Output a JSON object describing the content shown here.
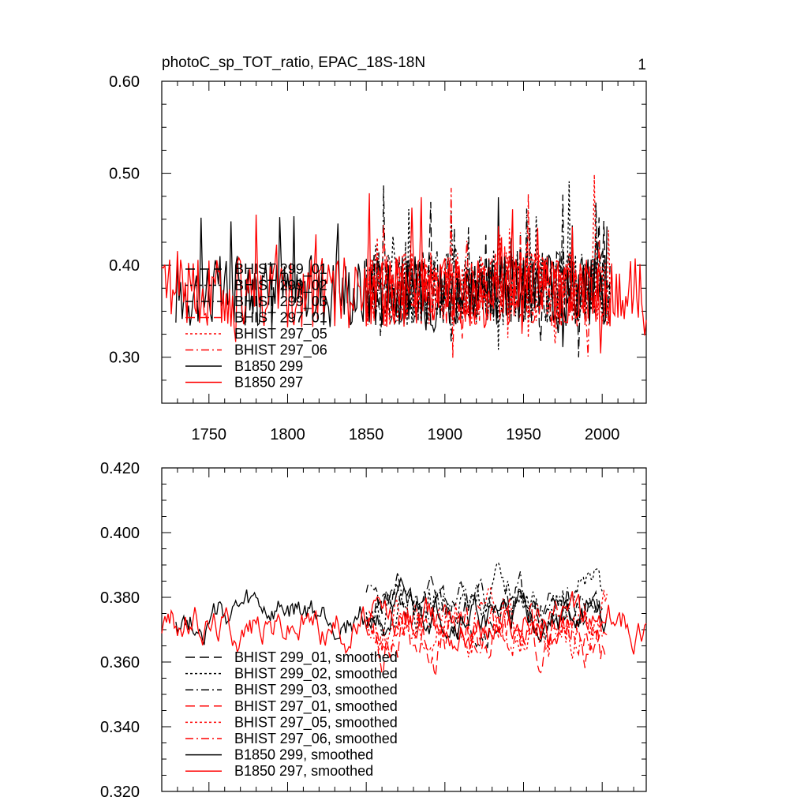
{
  "chart_data": [
    {
      "type": "line",
      "title": "photoC_sp_TOT_ratio, EPAC_18S-18N",
      "page_number": "1",
      "xlim": [
        1720,
        2028
      ],
      "ylim": [
        0.25,
        0.6
      ],
      "x_ticks": [
        1750,
        1800,
        1850,
        1900,
        1950,
        2000
      ],
      "x_tick_labels": [
        "1750",
        "1800",
        "1850",
        "1900",
        "1950",
        "2000"
      ],
      "y_ticks": [
        0.3,
        0.4,
        0.5,
        0.6
      ],
      "y_tick_labels": [
        "0.30",
        "0.40",
        "0.50",
        "0.60"
      ],
      "legend_position": "lower-left",
      "series": [
        {
          "name": "BHIST 299_01",
          "color": "#000000",
          "dash": "long-dash",
          "x_range": [
            1850,
            2005
          ],
          "mean": 0.375,
          "amp": 0.05,
          "seed": 11
        },
        {
          "name": "BHIST 299_02",
          "color": "#000000",
          "dash": "short-dash",
          "x_range": [
            1850,
            2005
          ],
          "mean": 0.378,
          "amp": 0.055,
          "seed": 12
        },
        {
          "name": "BHIST 299_03",
          "color": "#000000",
          "dash": "dash-dot",
          "x_range": [
            1850,
            2005
          ],
          "mean": 0.376,
          "amp": 0.05,
          "seed": 13
        },
        {
          "name": "BHIST 297_01",
          "color": "#ff0000",
          "dash": "long-dash",
          "x_range": [
            1850,
            2005
          ],
          "mean": 0.372,
          "amp": 0.048,
          "seed": 14
        },
        {
          "name": "BHIST 297_05",
          "color": "#ff0000",
          "dash": "short-dash",
          "x_range": [
            1850,
            2005
          ],
          "mean": 0.374,
          "amp": 0.05,
          "seed": 15
        },
        {
          "name": "BHIST 297_06",
          "color": "#ff0000",
          "dash": "dash-dot",
          "x_range": [
            1850,
            2005
          ],
          "mean": 0.373,
          "amp": 0.05,
          "seed": 16
        },
        {
          "name": "B1850 299",
          "color": "#000000",
          "dash": "solid",
          "x_range": [
            1729,
            2003
          ],
          "mean": 0.372,
          "amp": 0.05,
          "seed": 17
        },
        {
          "name": "B1850 297",
          "color": "#ff0000",
          "dash": "solid",
          "x_range": [
            1720,
            2028
          ],
          "mean": 0.37,
          "amp": 0.048,
          "seed": 18
        }
      ]
    },
    {
      "type": "line",
      "title": "",
      "xlim": [
        1720,
        2028
      ],
      "ylim": [
        0.32,
        0.42
      ],
      "x_ticks": [
        1750,
        1800,
        1850,
        1900,
        1950,
        2000
      ],
      "y_ticks": [
        0.32,
        0.34,
        0.36,
        0.38,
        0.4,
        0.42
      ],
      "y_tick_labels": [
        "0.320",
        "0.340",
        "0.360",
        "0.380",
        "0.400",
        "0.420"
      ],
      "legend_position": "lower-left",
      "series": [
        {
          "name": "BHIST 299_01, smoothed",
          "color": "#000000",
          "dash": "long-dash",
          "x_range": [
            1850,
            2000
          ],
          "mean": 0.376,
          "amp": 0.009,
          "seed": 21
        },
        {
          "name": "BHIST 299_02, smoothed",
          "color": "#000000",
          "dash": "short-dash",
          "x_range": [
            1850,
            2000
          ],
          "mean": 0.379,
          "amp": 0.01,
          "seed": 22
        },
        {
          "name": "BHIST 299_03, smoothed",
          "color": "#000000",
          "dash": "dash-dot",
          "x_range": [
            1850,
            2000
          ],
          "mean": 0.378,
          "amp": 0.009,
          "seed": 23
        },
        {
          "name": "BHIST 297_01, smoothed",
          "color": "#ff0000",
          "dash": "long-dash",
          "x_range": [
            1850,
            2003
          ],
          "mean": 0.368,
          "amp": 0.012,
          "seed": 24
        },
        {
          "name": "BHIST 297_05, smoothed",
          "color": "#ff0000",
          "dash": "short-dash",
          "x_range": [
            1850,
            2003
          ],
          "mean": 0.372,
          "amp": 0.011,
          "seed": 25
        },
        {
          "name": "BHIST 297_06, smoothed",
          "color": "#ff0000",
          "dash": "dash-dot",
          "x_range": [
            1850,
            2003
          ],
          "mean": 0.371,
          "amp": 0.009,
          "seed": 26
        },
        {
          "name": "B1850 299, smoothed",
          "color": "#000000",
          "dash": "solid",
          "x_range": [
            1729,
            2003
          ],
          "mean": 0.374,
          "amp": 0.008,
          "seed": 27
        },
        {
          "name": "B1850 297, smoothed",
          "color": "#ff0000",
          "dash": "solid",
          "x_range": [
            1720,
            2028
          ],
          "mean": 0.372,
          "amp": 0.009,
          "seed": 28
        }
      ]
    }
  ]
}
